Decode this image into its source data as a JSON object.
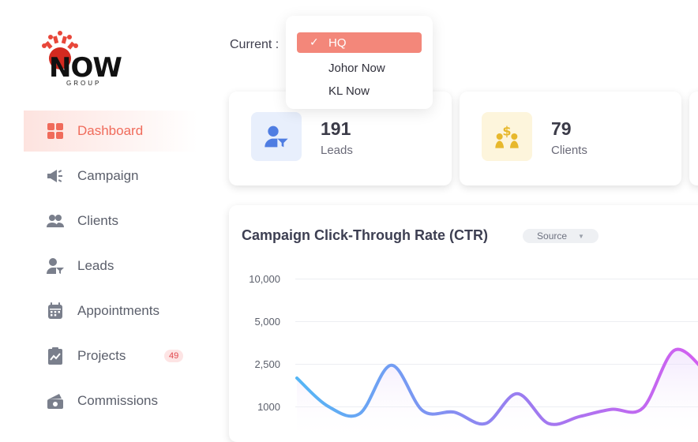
{
  "header": {
    "current_label": "Current :",
    "dropdown_options": [
      {
        "label": "HQ",
        "selected": true
      },
      {
        "label": "Johor Now",
        "selected": false
      },
      {
        "label": "KL Now",
        "selected": false
      }
    ]
  },
  "logo": {
    "main": "NOW",
    "sub": "GROUP"
  },
  "sidebar": {
    "items": [
      {
        "label": "Dashboard",
        "icon": "grid-icon",
        "active": true
      },
      {
        "label": "Campaign",
        "icon": "megaphone-icon"
      },
      {
        "label": "Clients",
        "icon": "users-icon"
      },
      {
        "label": "Leads",
        "icon": "user-filter-icon"
      },
      {
        "label": "Appointments",
        "icon": "calendar-icon"
      },
      {
        "label": "Projects",
        "icon": "clipboard-chart-icon",
        "badge": "49"
      },
      {
        "label": "Commissions",
        "icon": "money-icon"
      }
    ]
  },
  "stats": [
    {
      "value": "191",
      "label": "Leads",
      "icon": "user-filter-icon",
      "color": "#e8effc"
    },
    {
      "value": "79",
      "label": "Clients",
      "icon": "clients-dollar-icon",
      "color": "#fdf5dc"
    }
  ],
  "chart": {
    "title": "Campaign Click-Through Rate (CTR)",
    "source_label": "Source"
  },
  "chart_data": {
    "type": "line",
    "title": "Campaign Click-Through Rate (CTR)",
    "y_ticks": [
      "10,000",
      "5,000",
      "2,500",
      "1000"
    ],
    "series": [
      {
        "values": [
          2000,
          1000,
          750,
          2450,
          850,
          800,
          400,
          1450,
          400,
          650,
          900,
          950,
          3300,
          2200
        ]
      }
    ],
    "colors": [
      "#55b6f5",
      "#9b7cf0",
      "#d55ef0"
    ],
    "grid": true
  }
}
